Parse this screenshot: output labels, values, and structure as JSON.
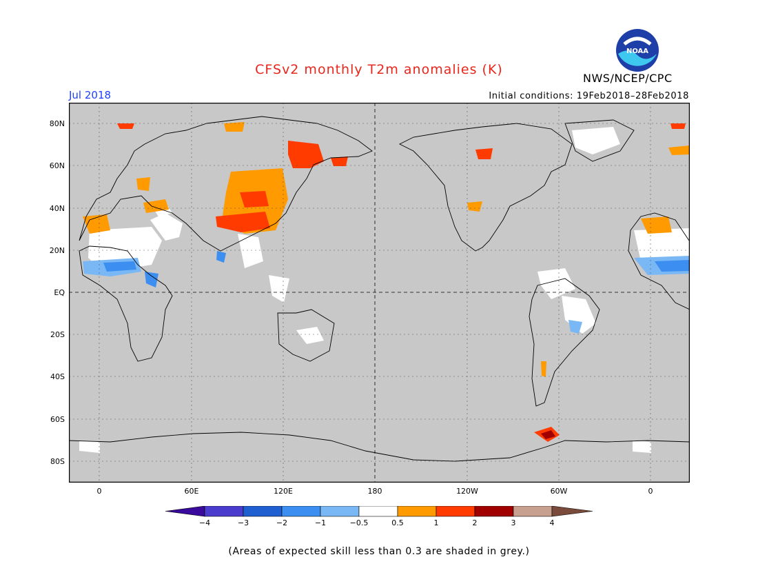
{
  "title": "CFSv2 monthly T2m anomalies (K)",
  "organization": "NWS/NCEP/CPC",
  "logo": {
    "text": "NOAA",
    "icon": "noaa-logo"
  },
  "valid_month": "Jul 2018",
  "initial_conditions": "Initial conditions: 19Feb2018–28Feb2018",
  "latitude_labels": [
    "80N",
    "60N",
    "40N",
    "20N",
    "EQ",
    "20S",
    "40S",
    "60S",
    "80S"
  ],
  "longitude_labels": [
    "0",
    "60E",
    "120E",
    "180",
    "120W",
    "60W",
    "0"
  ],
  "colorbar": {
    "labels": [
      "−4",
      "−3",
      "−2",
      "−1",
      "−0.5",
      "0.5",
      "1",
      "2",
      "3",
      "4"
    ],
    "colors": [
      "#3a0a9c",
      "#4a3ccc",
      "#1f5fd0",
      "#3c8ff0",
      "#7ab8f5",
      "#ffffff",
      "#ff9a00",
      "#ff3b00",
      "#a00000",
      "#c8a090",
      "#7a4a3a"
    ]
  },
  "colors": {
    "no_skill_grey": "#c8c8c8",
    "title_red": "#e8261c",
    "date_blue": "#1e40ff"
  },
  "footer": "(Areas of expected skill less than 0.3 are shaded in grey.)"
}
